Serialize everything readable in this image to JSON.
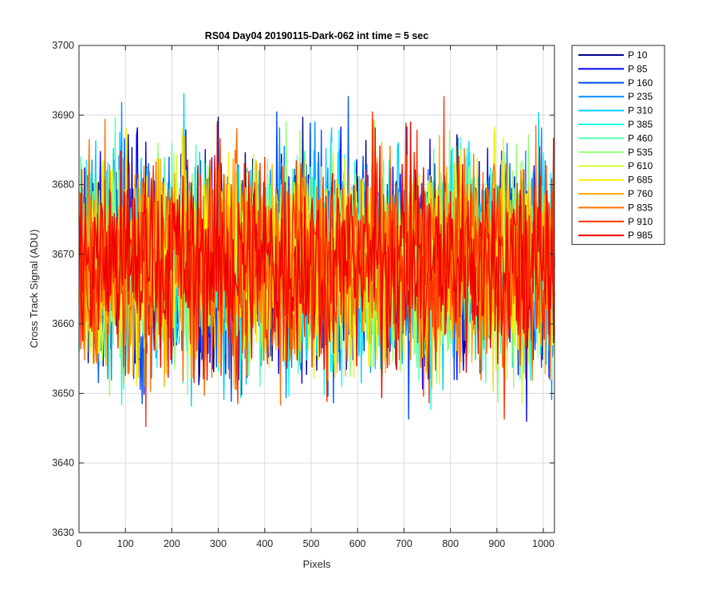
{
  "chart_data": {
    "type": "line",
    "title": "RS04 Day04 20190115-Dark-062 int time = 5 sec",
    "xlabel": "Pixels",
    "ylabel": "Cross Track Signal (ADU)",
    "xlim": [
      0,
      1024
    ],
    "ylim": [
      3630,
      3700
    ],
    "xticks": [
      0,
      100,
      200,
      300,
      400,
      500,
      600,
      700,
      800,
      900,
      1000
    ],
    "yticks": [
      3630,
      3640,
      3650,
      3660,
      3670,
      3680,
      3690,
      3700
    ],
    "grid": true,
    "legend_position": "outside-top-right",
    "baseline_mean": 3669,
    "series": [
      {
        "name": "P 10",
        "color": "#00008F",
        "min": 3641,
        "max": 3692
      },
      {
        "name": "P 85",
        "color": "#0000EF",
        "min": 3646,
        "max": 3696
      },
      {
        "name": "P 160",
        "color": "#0050FF",
        "min": 3644,
        "max": 3693
      },
      {
        "name": "P 235",
        "color": "#0090FF",
        "min": 3645,
        "max": 3692
      },
      {
        "name": "P 310",
        "color": "#00CFFF",
        "min": 3644,
        "max": 3696
      },
      {
        "name": "P 385",
        "color": "#10FFEF",
        "min": 3643,
        "max": 3694
      },
      {
        "name": "P 460",
        "color": "#50FFAF",
        "min": 3639,
        "max": 3697
      },
      {
        "name": "P 535",
        "color": "#8FFF70",
        "min": 3641,
        "max": 3692
      },
      {
        "name": "P 610",
        "color": "#CFFF30",
        "min": 3644,
        "max": 3690
      },
      {
        "name": "P 685",
        "color": "#FFEF00",
        "min": 3645,
        "max": 3691
      },
      {
        "name": "P 760",
        "color": "#FFAF00",
        "min": 3643,
        "max": 3699
      },
      {
        "name": "P 835",
        "color": "#FF7000",
        "min": 3646,
        "max": 3695
      },
      {
        "name": "P 910",
        "color": "#FF3000",
        "min": 3645,
        "max": 3693
      },
      {
        "name": "P 985",
        "color": "#EF0000",
        "min": 3641,
        "max": 3689
      }
    ]
  }
}
